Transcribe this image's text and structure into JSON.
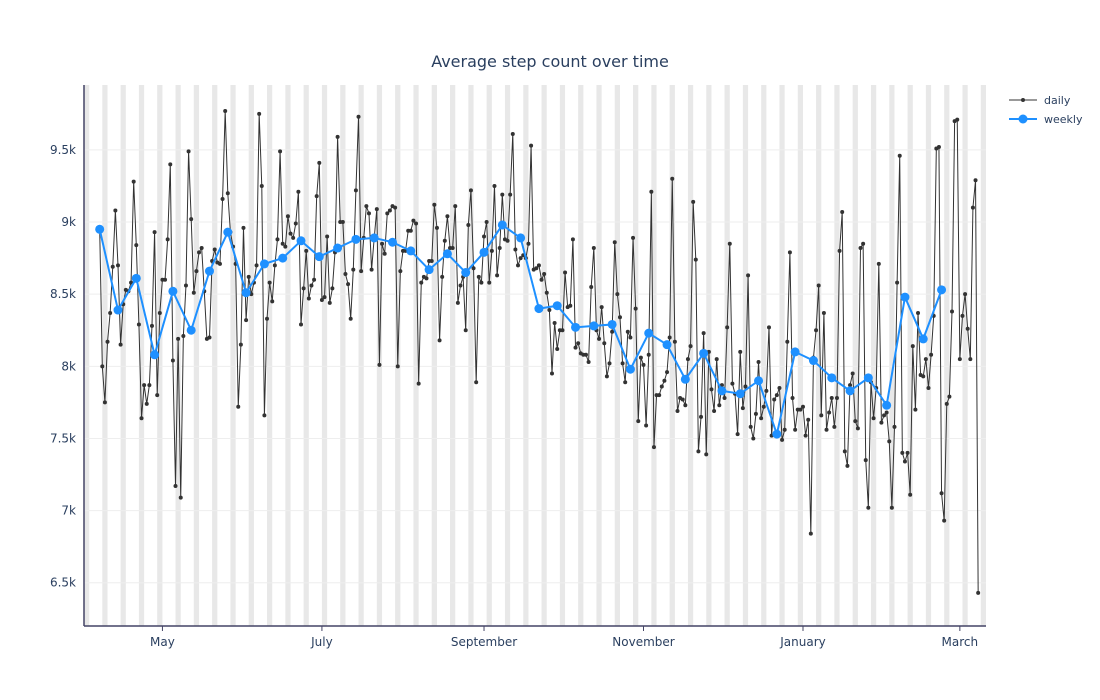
{
  "chart_data": {
    "type": "line",
    "title": "Average step count over time",
    "xlabel": "",
    "ylabel": "",
    "x_range": [
      "2023-04-01",
      "2024-03-11"
    ],
    "ylim": [
      6200,
      9950
    ],
    "y_ticks": [
      6500,
      7000,
      7500,
      8000,
      8500,
      9000,
      9500
    ],
    "y_tick_labels": [
      "6.5k",
      "7k",
      "7.5k",
      "8k",
      "8.5k",
      "9k",
      "9.5k"
    ],
    "x_ticks": [
      "2023-05-01",
      "2023-07-01",
      "2023-09-01",
      "2023-11-01",
      "2024-01-01",
      "2024-03-01"
    ],
    "x_tick_labels": [
      "May",
      "July",
      "September",
      "November",
      "January",
      "March"
    ],
    "weekend_shading": true,
    "grid": true,
    "legend": "top-right",
    "colors": {
      "daily": "#333333",
      "weekly": "#1e90ff",
      "shade": "#e8e8e8",
      "grid": "#eeeeee",
      "axis": "#444466"
    },
    "series": [
      {
        "name": "daily",
        "start": "2023-04-07",
        "values": [
          8950,
          8000,
          7750,
          8170,
          8370,
          8690,
          9080,
          8700,
          8150,
          8430,
          8530,
          8520,
          8580,
          9280,
          8840,
          8290,
          7640,
          7870,
          7740,
          7870,
          8280,
          8930,
          7800,
          8370,
          8600,
          8600,
          8880,
          9400,
          8040,
          7170,
          8190,
          7090,
          8210,
          8560,
          9490,
          9020,
          8510,
          8660,
          8790,
          8820,
          8520,
          8190,
          8200,
          8730,
          8810,
          8720,
          8710,
          9160,
          9770,
          9200,
          8930,
          8830,
          8710,
          7720,
          8150,
          8960,
          8320,
          8620,
          8500,
          8580,
          8700,
          9750,
          9250,
          7660,
          8330,
          8580,
          8450,
          8700,
          8880,
          9490,
          8850,
          8830,
          9040,
          8920,
          8890,
          8990,
          9210,
          8290,
          8540,
          8800,
          8470,
          8560,
          8600,
          9180,
          9410,
          8460,
          8480,
          8900,
          8440,
          8540,
          8790,
          9590,
          9000,
          9000,
          8640,
          8570,
          8330,
          8670,
          9220,
          9730,
          8660,
          8890,
          9110,
          9060,
          8670,
          8890,
          9090,
          8010,
          8850,
          8780,
          9060,
          9080,
          9110,
          9100,
          8000,
          8660,
          8800,
          8800,
          8940,
          8940,
          9010,
          8990,
          7880,
          8580,
          8620,
          8610,
          8730,
          8730,
          9120,
          8960,
          8180,
          8620,
          8870,
          9040,
          8820,
          8820,
          9110,
          8440,
          8560,
          8620,
          8250,
          8980,
          9220,
          8680,
          7890,
          8620,
          8580,
          8900,
          9000,
          8580,
          8800,
          9250,
          8630,
          8820,
          9190,
          8880,
          8870,
          9190,
          9610,
          8810,
          8700,
          8750,
          8770,
          8750,
          8850,
          9530,
          8670,
          8680,
          8700,
          8600,
          8640,
          8510,
          8390,
          7950,
          8300,
          8120,
          8250,
          8250,
          8650,
          8410,
          8420,
          8880,
          8130,
          8160,
          8090,
          8080,
          8080,
          8030,
          8550,
          8820,
          8250,
          8190,
          8410,
          8160,
          7930,
          8020,
          8240,
          8860,
          8500,
          8340,
          8020,
          7890,
          8240,
          8200,
          8890,
          8400,
          7620,
          8060,
          8010,
          7590,
          8080,
          9210,
          7440,
          7800,
          7800,
          7860,
          7900,
          7960,
          8200,
          9300,
          8170,
          7690,
          7780,
          7770,
          7730,
          8050,
          8140,
          9140,
          8740,
          7410,
          7650,
          8230,
          7390,
          8100,
          7840,
          7690,
          8050,
          7730,
          7870,
          7780,
          8270,
          8850,
          7880,
          7810,
          7530,
          8100,
          7710,
          7860,
          8630,
          7580,
          7500,
          7670,
          8030,
          7640,
          7720,
          7830,
          8270,
          7520,
          7770,
          7800,
          7850,
          7490,
          7560,
          8170,
          8790,
          7780,
          7560,
          7700,
          7700,
          7720,
          7520,
          7630,
          6840,
          8060,
          8250,
          8560,
          7660,
          8370,
          7560,
          7680,
          7780,
          7580,
          7780,
          8800,
          9070,
          7410,
          7310,
          7870,
          7950,
          7620,
          7570,
          8820,
          8850,
          7350,
          7020,
          7890,
          7640,
          7850,
          8710,
          7610,
          7660,
          7680,
          7480,
          7020,
          7580,
          8580,
          9460,
          7400,
          7340,
          7400,
          7110,
          8140,
          7700,
          8370,
          7940,
          7930,
          8050,
          7850,
          8080,
          8350,
          9510,
          9520,
          7120,
          6930,
          7740,
          7790,
          8380,
          9700,
          9710,
          8050,
          8350,
          8500,
          8260,
          8050,
          9100,
          9290,
          6430
        ]
      },
      {
        "name": "weekly",
        "start": "2023-04-07",
        "step_days": 7,
        "values": [
          8950,
          8390,
          8610,
          8080,
          8520,
          8250,
          8660,
          8930,
          8510,
          8710,
          8750,
          8870,
          8760,
          8820,
          8880,
          8890,
          8860,
          8800,
          8670,
          8780,
          8650,
          8790,
          8980,
          8890,
          8400,
          8420,
          8270,
          8280,
          8290,
          7980,
          8230,
          8150,
          7910,
          8090,
          7830,
          7810,
          7900,
          7530,
          8100,
          8040,
          7920,
          7830,
          7920,
          7730,
          8480,
          8190,
          8530
        ]
      }
    ]
  }
}
